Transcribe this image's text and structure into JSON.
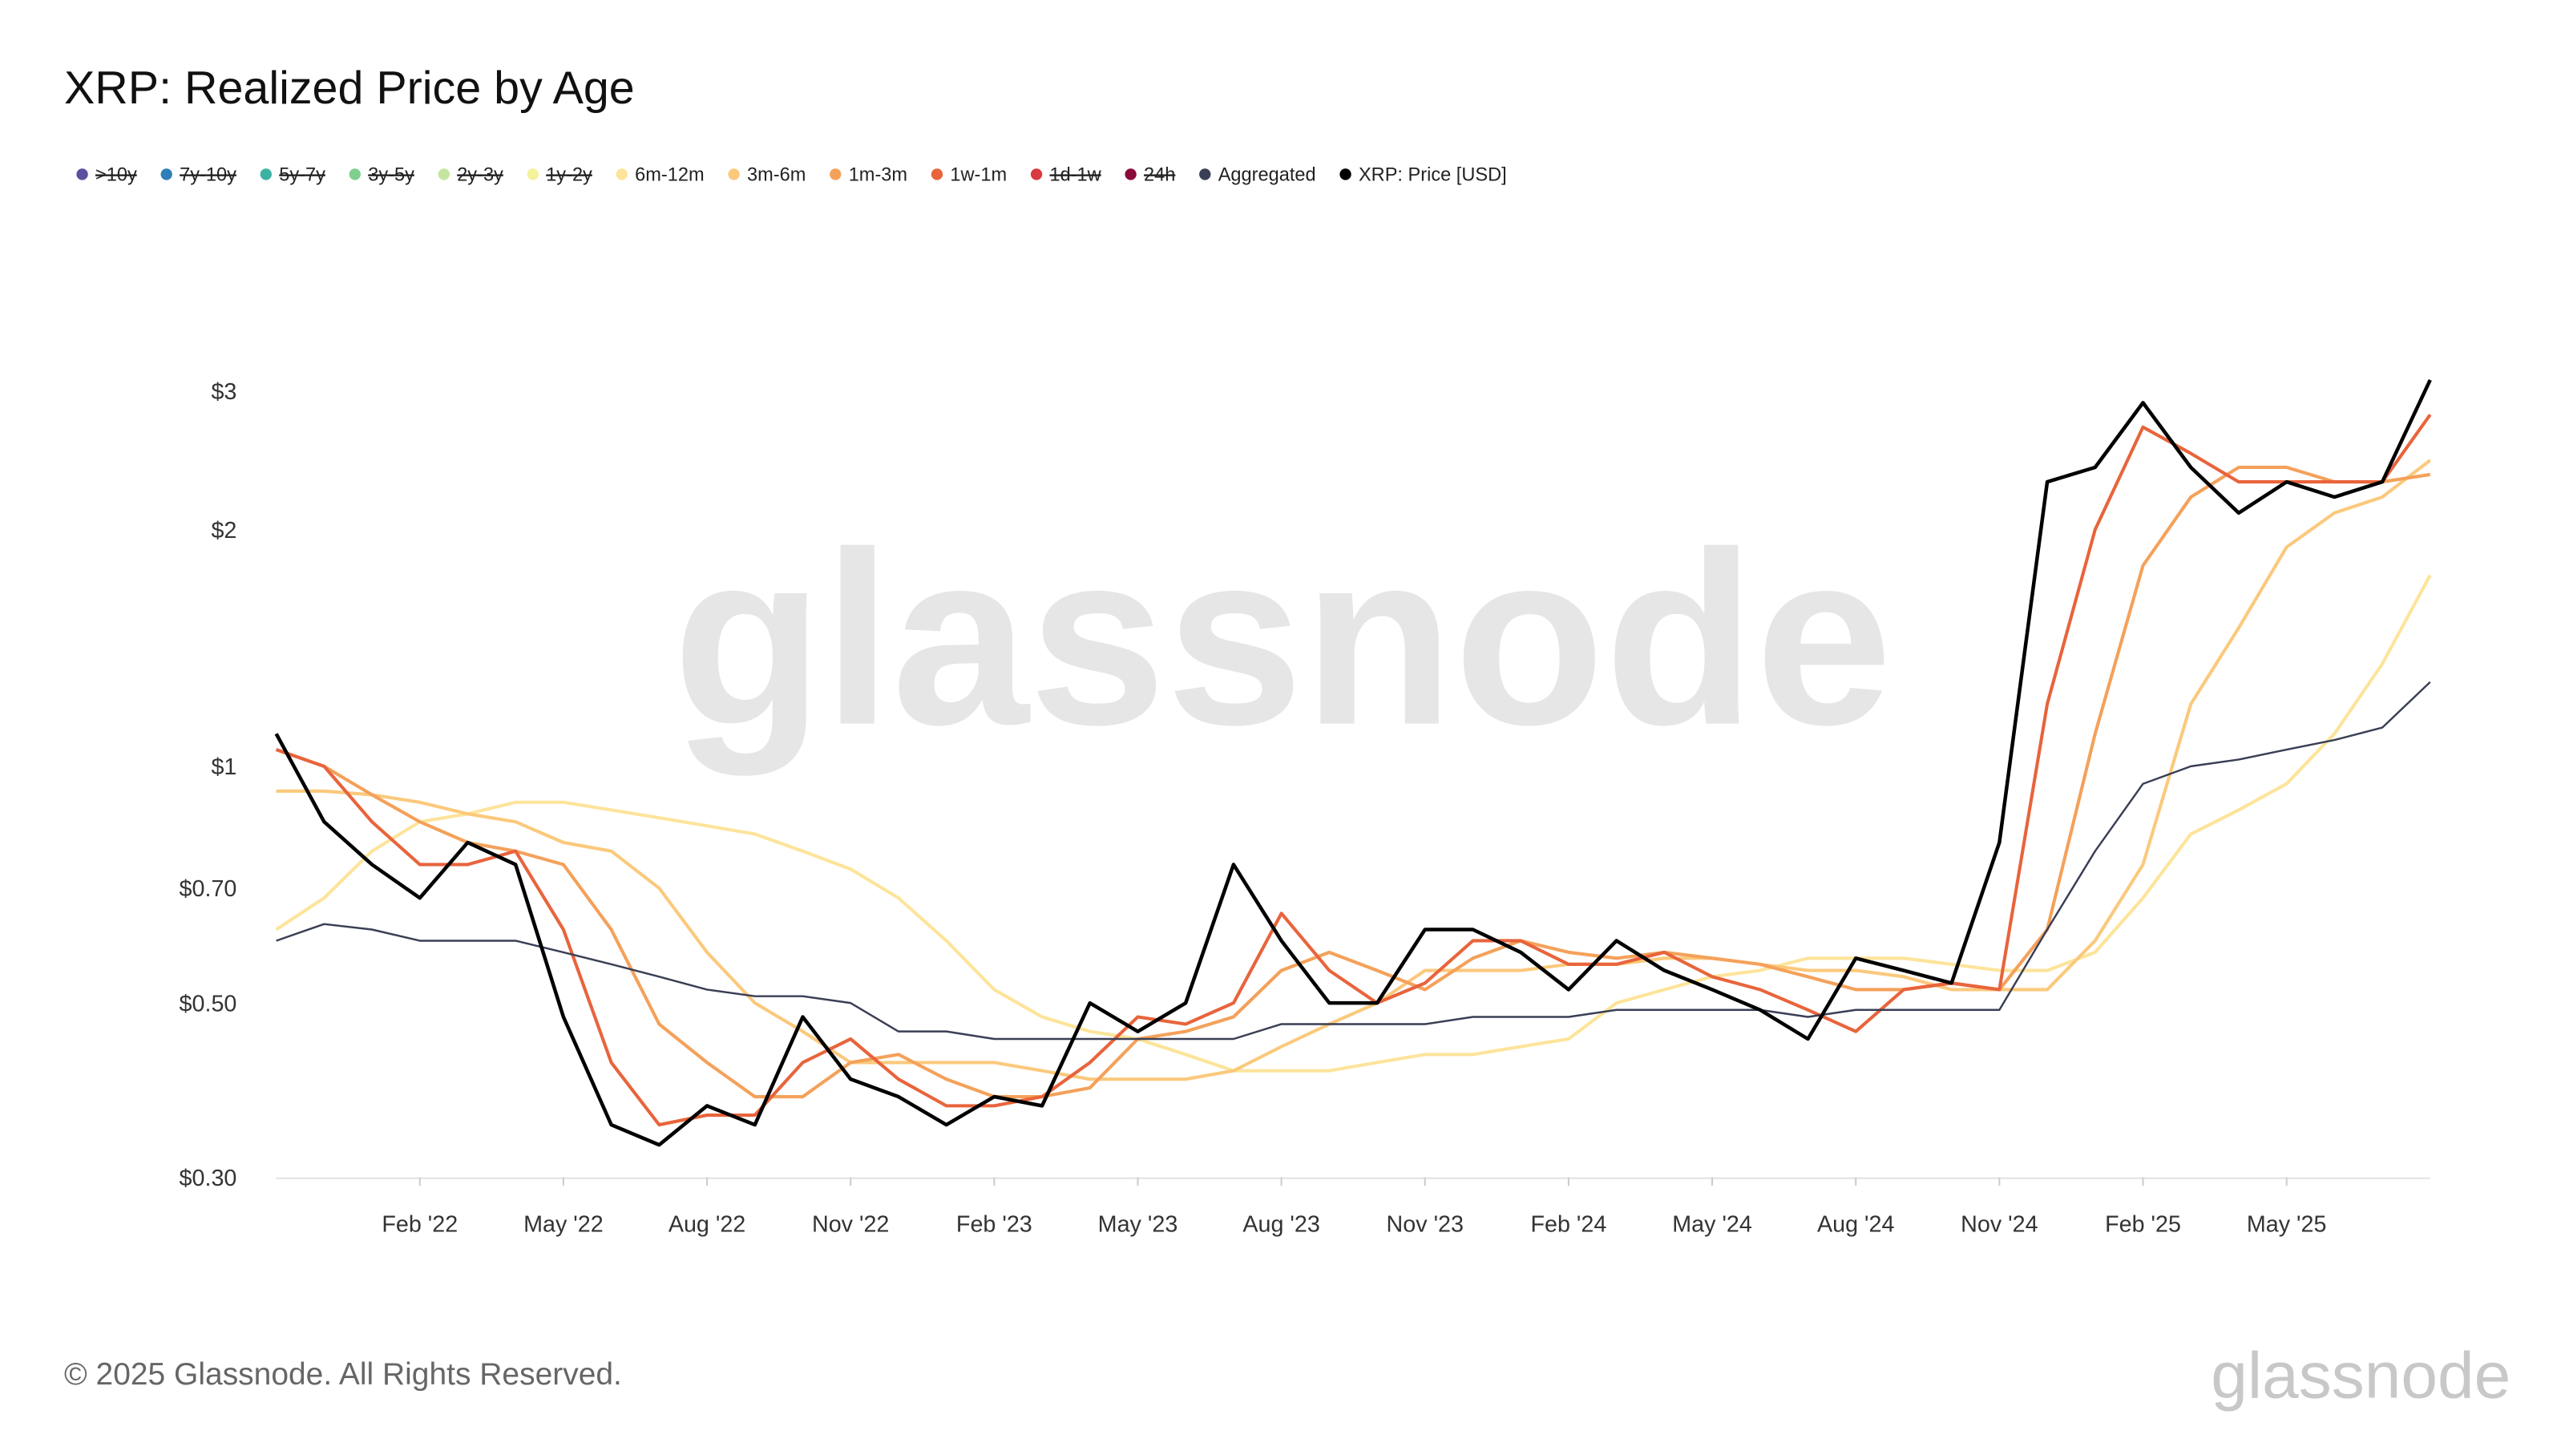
{
  "chart_data": {
    "type": "line",
    "title": "XRP: Realized Price by Age",
    "watermark": "glassnode",
    "copyright": "© 2025 Glassnode. All Rights Reserved.",
    "logo": "glassnode",
    "log_scale": true,
    "grid": false,
    "legend": "top-left",
    "x": [
      "2021-11",
      "2021-12",
      "2022-01",
      "2022-02",
      "2022-03",
      "2022-04",
      "2022-05",
      "2022-06",
      "2022-07",
      "2022-08",
      "2022-09",
      "2022-10",
      "2022-11",
      "2022-12",
      "2023-01",
      "2023-02",
      "2023-03",
      "2023-04",
      "2023-05",
      "2023-06",
      "2023-07",
      "2023-08",
      "2023-09",
      "2023-10",
      "2023-11",
      "2023-12",
      "2024-01",
      "2024-02",
      "2024-03",
      "2024-04",
      "2024-05",
      "2024-06",
      "2024-07",
      "2024-08",
      "2024-09",
      "2024-10",
      "2024-11",
      "2024-12",
      "2025-01",
      "2025-02",
      "2025-03",
      "2025-04",
      "2025-05",
      "2025-06",
      "2025-07",
      "2025-08"
    ],
    "xticks": [
      {
        "value": "2022-02",
        "label": "Feb '22"
      },
      {
        "value": "2022-05",
        "label": "May '22"
      },
      {
        "value": "2022-08",
        "label": "Aug '22"
      },
      {
        "value": "2022-11",
        "label": "Nov '22"
      },
      {
        "value": "2023-02",
        "label": "Feb '23"
      },
      {
        "value": "2023-05",
        "label": "May '23"
      },
      {
        "value": "2023-08",
        "label": "Aug '23"
      },
      {
        "value": "2023-11",
        "label": "Nov '23"
      },
      {
        "value": "2024-02",
        "label": "Feb '24"
      },
      {
        "value": "2024-05",
        "label": "May '24"
      },
      {
        "value": "2024-08",
        "label": "Aug '24"
      },
      {
        "value": "2024-11",
        "label": "Nov '24"
      },
      {
        "value": "2025-02",
        "label": "Feb '25"
      },
      {
        "value": "2025-05",
        "label": "May '25"
      }
    ],
    "ylim": [
      0.3,
      3.6
    ],
    "yticks": [
      {
        "value": 0.3,
        "label": "$0.30"
      },
      {
        "value": 0.5,
        "label": "$0.50"
      },
      {
        "value": 0.7,
        "label": "$0.70"
      },
      {
        "value": 1,
        "label": "$1"
      },
      {
        "value": 2,
        "label": "$2"
      },
      {
        "value": 3,
        "label": "$3"
      }
    ],
    "series": [
      {
        "name": ">10y",
        "color": "#5b4fa0",
        "hidden": true
      },
      {
        "name": "7y-10y",
        "color": "#2e7fb8",
        "hidden": true
      },
      {
        "name": "5y-7y",
        "color": "#3bb3a3",
        "hidden": true
      },
      {
        "name": "3y-5y",
        "color": "#7ed08f",
        "hidden": true
      },
      {
        "name": "2y-3y",
        "color": "#c4e6a0",
        "hidden": true
      },
      {
        "name": "1y-2y",
        "color": "#f4f29a",
        "hidden": true
      },
      {
        "name": "6m-12m",
        "color": "#fde49a",
        "values": [
          0.62,
          0.68,
          0.78,
          0.85,
          0.87,
          0.9,
          0.9,
          0.88,
          0.86,
          0.84,
          0.82,
          0.78,
          0.74,
          0.68,
          0.6,
          0.52,
          0.48,
          0.46,
          0.45,
          0.43,
          0.41,
          0.41,
          0.41,
          0.42,
          0.43,
          0.43,
          0.44,
          0.45,
          0.5,
          0.52,
          0.54,
          0.55,
          0.57,
          0.57,
          0.57,
          0.56,
          0.55,
          0.55,
          0.58,
          0.68,
          0.82,
          0.88,
          0.95,
          1.1,
          1.35,
          1.75
        ]
      },
      {
        "name": "3m-6m",
        "color": "#fbc97c",
        "values": [
          0.93,
          0.93,
          0.92,
          0.9,
          0.87,
          0.85,
          0.8,
          0.78,
          0.7,
          0.58,
          0.5,
          0.46,
          0.42,
          0.42,
          0.42,
          0.42,
          0.41,
          0.4,
          0.4,
          0.4,
          0.41,
          0.44,
          0.47,
          0.5,
          0.55,
          0.55,
          0.55,
          0.56,
          0.56,
          0.57,
          0.57,
          0.56,
          0.55,
          0.55,
          0.54,
          0.52,
          0.52,
          0.52,
          0.6,
          0.75,
          1.2,
          1.5,
          1.9,
          2.1,
          2.2,
          2.45
        ]
      },
      {
        "name": "1m-3m",
        "color": "#f4a15a",
        "values": [
          1.05,
          1.0,
          0.92,
          0.85,
          0.8,
          0.78,
          0.75,
          0.62,
          0.47,
          0.42,
          0.38,
          0.38,
          0.42,
          0.43,
          0.4,
          0.38,
          0.38,
          0.39,
          0.45,
          0.46,
          0.48,
          0.55,
          0.58,
          0.55,
          0.52,
          0.57,
          0.6,
          0.58,
          0.57,
          0.58,
          0.57,
          0.56,
          0.54,
          0.52,
          0.52,
          0.53,
          0.52,
          0.62,
          1.1,
          1.8,
          2.2,
          2.4,
          2.4,
          2.3,
          2.3,
          2.35
        ]
      },
      {
        "name": "1w-1m",
        "color": "#e8643c",
        "values": [
          1.05,
          1.0,
          0.85,
          0.75,
          0.75,
          0.78,
          0.62,
          0.42,
          0.35,
          0.36,
          0.36,
          0.42,
          0.45,
          0.4,
          0.37,
          0.37,
          0.38,
          0.42,
          0.48,
          0.47,
          0.5,
          0.65,
          0.55,
          0.5,
          0.53,
          0.6,
          0.6,
          0.56,
          0.56,
          0.58,
          0.54,
          0.52,
          0.49,
          0.46,
          0.52,
          0.53,
          0.52,
          1.2,
          2.0,
          2.7,
          2.5,
          2.3,
          2.3,
          2.3,
          2.3,
          2.8
        ]
      },
      {
        "name": "1d-1w",
        "color": "#d83a3f",
        "hidden": true
      },
      {
        "name": "24h",
        "color": "#8b0a3c",
        "hidden": true
      },
      {
        "name": "Aggregated",
        "color": "#3a3f55",
        "values": [
          0.6,
          0.63,
          0.62,
          0.6,
          0.6,
          0.6,
          0.58,
          0.56,
          0.54,
          0.52,
          0.51,
          0.51,
          0.5,
          0.46,
          0.46,
          0.45,
          0.45,
          0.45,
          0.45,
          0.45,
          0.45,
          0.47,
          0.47,
          0.47,
          0.47,
          0.48,
          0.48,
          0.48,
          0.49,
          0.49,
          0.49,
          0.49,
          0.48,
          0.49,
          0.49,
          0.49,
          0.49,
          0.62,
          0.78,
          0.95,
          1.0,
          1.02,
          1.05,
          1.08,
          1.12,
          1.28
        ]
      },
      {
        "name": "XRP: Price [USD]",
        "color": "#000000",
        "values": [
          1.1,
          0.85,
          0.75,
          0.68,
          0.8,
          0.75,
          0.48,
          0.35,
          0.33,
          0.37,
          0.35,
          0.48,
          0.4,
          0.38,
          0.35,
          0.38,
          0.37,
          0.5,
          0.46,
          0.5,
          0.75,
          0.6,
          0.5,
          0.5,
          0.62,
          0.62,
          0.58,
          0.52,
          0.6,
          0.55,
          0.52,
          0.49,
          0.45,
          0.57,
          0.55,
          0.53,
          0.8,
          2.3,
          2.4,
          2.9,
          2.4,
          2.1,
          2.3,
          2.2,
          2.3,
          3.1
        ]
      }
    ]
  }
}
